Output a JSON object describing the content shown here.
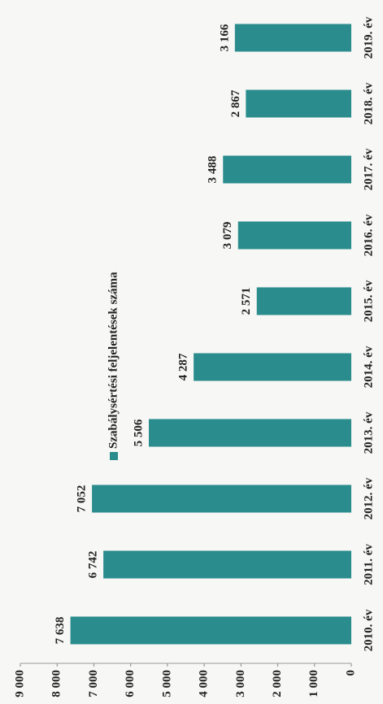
{
  "chart_data": {
    "type": "bar",
    "categories": [
      "2010. év",
      "2011. év",
      "2012. év",
      "2013. év",
      "2014. év",
      "2015. év",
      "2016. év",
      "2017. év",
      "2018. év",
      "2019. év"
    ],
    "series": [
      {
        "name": "Szabálysértési feljelentések száma",
        "color": "#2a8c8c",
        "values": [
          7638,
          6742,
          7052,
          5506,
          4287,
          2571,
          3079,
          3488,
          2867,
          3166
        ],
        "value_labels": [
          "7 638",
          "6 742",
          "7 052",
          "5 506",
          "4 287",
          "2 571",
          "3 079",
          "3 488",
          "2 867",
          "3 166"
        ]
      }
    ],
    "ylim": [
      0,
      9000
    ],
    "yticks": [
      0,
      {
        "value": 1000,
        "label": "1 000"
      },
      {
        "value": 2000,
        "label": "2 000"
      },
      {
        "value": 3000,
        "label": "3 000"
      },
      {
        "value": 4000,
        "label": "4 000"
      },
      {
        "value": 5000,
        "label": "5 000"
      },
      {
        "value": 6000,
        "label": "6 000"
      },
      {
        "value": 7000,
        "label": "7 000"
      },
      {
        "value": 8000,
        "label": "8 000"
      },
      {
        "value": 9000,
        "label": "9 000"
      }
    ]
  }
}
